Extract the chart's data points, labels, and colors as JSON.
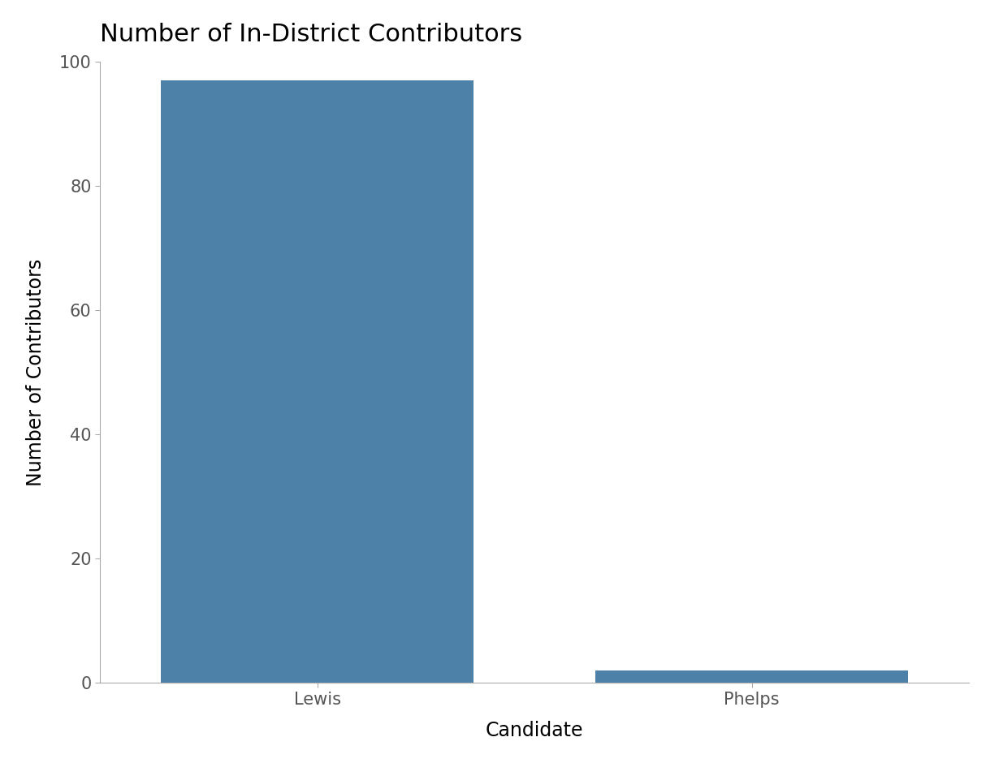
{
  "categories": [
    "Lewis",
    "Phelps"
  ],
  "values": [
    97,
    2
  ],
  "bar_color": "#4d81a8",
  "title": "Number of In-District Contributors",
  "xlabel": "Candidate",
  "ylabel": "Number of Contributors",
  "ylim": [
    0,
    100
  ],
  "yticks": [
    0,
    20,
    40,
    60,
    80,
    100
  ],
  "title_fontsize": 22,
  "label_fontsize": 17,
  "tick_fontsize": 15,
  "background_color": "#ffffff",
  "bar_width": 0.72,
  "xlim": [
    -0.5,
    1.5
  ]
}
